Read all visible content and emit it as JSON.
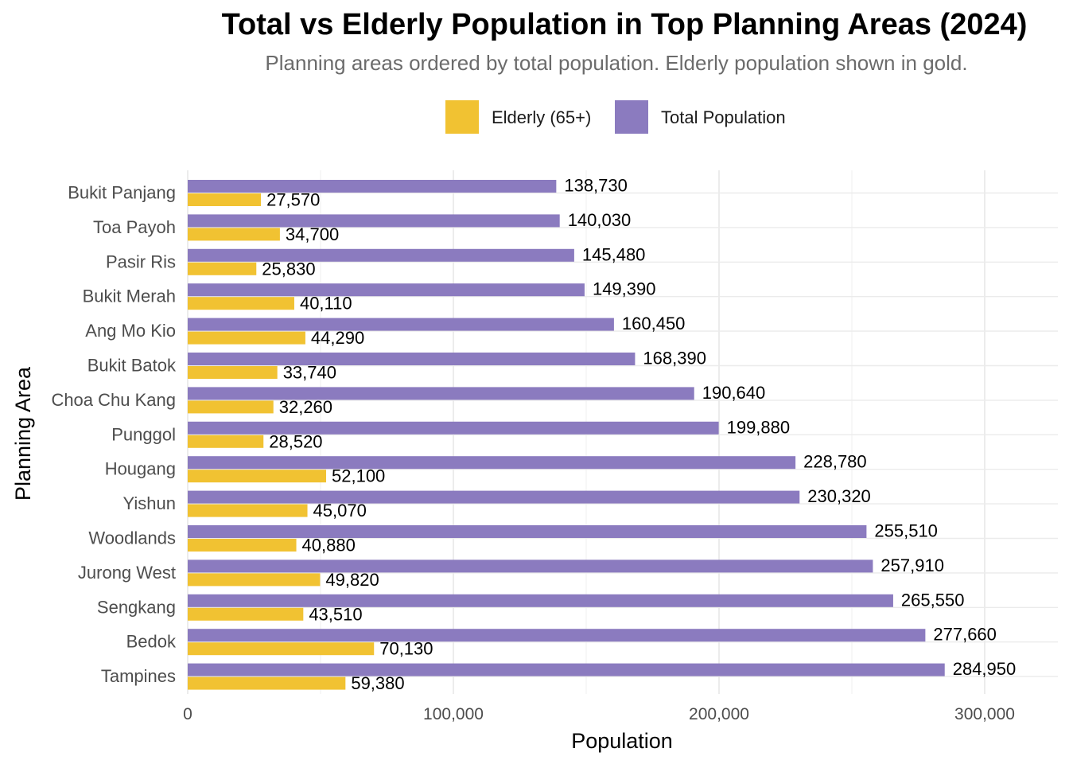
{
  "chart_data": {
    "type": "bar",
    "orientation": "horizontal",
    "title": "Total vs Elderly Population in Top Planning Areas (2024)",
    "subtitle": "Planning areas ordered by total population. Elderly population shown in gold.",
    "xlabel": "Population",
    "ylabel": "Planning Area",
    "xlim": [
      0,
      327000
    ],
    "x_ticks": [
      0,
      100000,
      200000,
      300000
    ],
    "x_tick_labels": [
      "0",
      "100,000",
      "200,000",
      "300,000"
    ],
    "grid": true,
    "legend_position": "top",
    "categories": [
      "Bukit Panjang",
      "Toa Payoh",
      "Pasir Ris",
      "Bukit Merah",
      "Ang Mo Kio",
      "Bukit Batok",
      "Choa Chu Kang",
      "Punggol",
      "Hougang",
      "Yishun",
      "Woodlands",
      "Jurong West",
      "Sengkang",
      "Bedok",
      "Tampines"
    ],
    "series": [
      {
        "name": "Total Population",
        "color": "#8b7bbf",
        "values": [
          138730,
          140030,
          145480,
          149390,
          160450,
          168390,
          190640,
          199880,
          228780,
          230320,
          255510,
          257910,
          265550,
          277660,
          284950
        ],
        "labels": [
          "138,730",
          "140,030",
          "145,480",
          "149,390",
          "160,450",
          "168,390",
          "190,640",
          "199,880",
          "228,780",
          "230,320",
          "255,510",
          "257,910",
          "265,550",
          "277,660",
          "284,950"
        ]
      },
      {
        "name": "Elderly (65+)",
        "color": "#f1c232",
        "values": [
          27570,
          34700,
          25830,
          40110,
          44290,
          33740,
          32260,
          28520,
          52100,
          45070,
          40880,
          49820,
          43510,
          70130,
          59380
        ],
        "labels": [
          "27,570",
          "34,700",
          "25,830",
          "40,110",
          "44,290",
          "33,740",
          "32,260",
          "28,520",
          "52,100",
          "45,070",
          "40,880",
          "49,820",
          "43,510",
          "70,130",
          "59,380"
        ]
      }
    ]
  },
  "legend": {
    "elderly_label": "Elderly (65+)",
    "total_label": "Total Population",
    "elderly_color": "#f1c232",
    "total_color": "#8b7bbf"
  }
}
